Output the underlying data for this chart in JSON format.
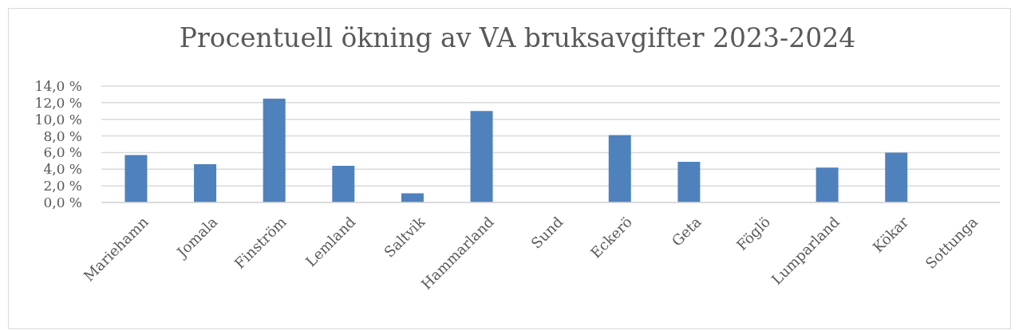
{
  "chart_data": {
    "type": "bar",
    "title": "Procentuell ökning av VA bruksavgifter 2023-2024",
    "categories": [
      "Mariehamn",
      "Jomala",
      "Finström",
      "Lemland",
      "Saltvik",
      "Hammarland",
      "Sund",
      "Eckerö",
      "Geta",
      "Föglö",
      "Lumparland",
      "Kökar",
      "Sottunga"
    ],
    "values": [
      5.7,
      4.6,
      12.5,
      4.4,
      1.1,
      11.0,
      null,
      8.1,
      4.9,
      null,
      4.2,
      6.0,
      null
    ],
    "color": "#4f81bd",
    "ylim": [
      0,
      14
    ],
    "yticks": [
      {
        "value": 0,
        "label": "0,0 %"
      },
      {
        "value": 2,
        "label": "2,0 %"
      },
      {
        "value": 4,
        "label": "4,0 %"
      },
      {
        "value": 6,
        "label": "6,0 %"
      },
      {
        "value": 8,
        "label": "8,0 %"
      },
      {
        "value": 10,
        "label": "10,0 %"
      },
      {
        "value": 12,
        "label": "12,0 %"
      },
      {
        "value": 14,
        "label": "14,0 %"
      }
    ],
    "grid": "y"
  }
}
